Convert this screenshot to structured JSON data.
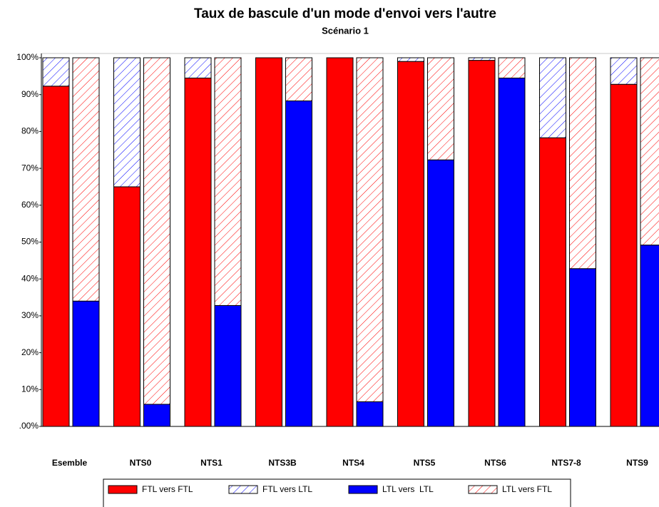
{
  "chart_data": {
    "type": "bar",
    "stacked": true,
    "title": "Taux de bascule d'un mode d'envoi vers l'autre",
    "subtitle": "Scénario 1",
    "categories": [
      "Esemble",
      "NTS0",
      "NTS1",
      "NTS3B",
      "NTS4",
      "NTS5",
      "NTS6",
      "NTS7-8",
      "NTS9"
    ],
    "series": [
      {
        "name": "FTL vers FTL",
        "color": "#ff0000",
        "fill": "solid",
        "stack": 0,
        "values": [
          92.3,
          65,
          94.5,
          100,
          100,
          99,
          99.3,
          78.3,
          92.8
        ]
      },
      {
        "name": "FTL vers LTL",
        "color": "#0000ff",
        "fill": "hatch",
        "stack": 0,
        "values": [
          7.7,
          35,
          5.5,
          0,
          0,
          1,
          0.7,
          21.7,
          7.2
        ]
      },
      {
        "name": "LTL vers  LTL",
        "color": "#0000ff",
        "fill": "solid",
        "stack": 1,
        "values": [
          34,
          6,
          32.8,
          88.3,
          6.7,
          72.3,
          94.5,
          42.8,
          49.2
        ]
      },
      {
        "name": "LTL vers FTL",
        "color": "#ff0000",
        "fill": "hatch",
        "stack": 1,
        "values": [
          66,
          94,
          67.2,
          11.7,
          93.3,
          27.7,
          5.5,
          57.2,
          50.8
        ]
      }
    ],
    "ylim": [
      0,
      100
    ],
    "yticks": [
      {
        "value": 0,
        "label": ".00%"
      },
      {
        "value": 10,
        "label": "10%"
      },
      {
        "value": 20,
        "label": "20%"
      },
      {
        "value": 30,
        "label": "30%"
      },
      {
        "value": 40,
        "label": "40%"
      },
      {
        "value": 50,
        "label": "50%"
      },
      {
        "value": 60,
        "label": "60%"
      },
      {
        "value": 70,
        "label": "70%"
      },
      {
        "value": 80,
        "label": "80%"
      },
      {
        "value": 90,
        "label": "90%"
      },
      {
        "value": 100,
        "label": "100%"
      }
    ],
    "legend": "bottom"
  }
}
